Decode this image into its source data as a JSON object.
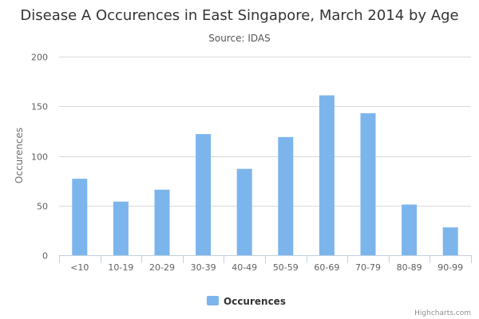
{
  "chart_data": {
    "type": "bar",
    "title": "Disease A Occurences in East Singapore, March 2014 by Age",
    "subtitle": "Source: IDAS",
    "xlabel": "",
    "ylabel": "Occurences",
    "categories": [
      "<10",
      "10-19",
      "20-29",
      "30-39",
      "40-49",
      "50-59",
      "60-69",
      "70-79",
      "80-89",
      "90-99"
    ],
    "series": [
      {
        "name": "Occurences",
        "values": [
          77,
          54,
          66,
          122,
          87,
          119,
          161,
          143,
          51,
          28
        ]
      }
    ],
    "ylim": [
      0,
      200
    ],
    "yticks": [
      0,
      50,
      100,
      150,
      200
    ],
    "grid": true,
    "legend": "bottom-center",
    "bar_color": "#7cb5ec"
  },
  "credits": "Highcharts.com"
}
